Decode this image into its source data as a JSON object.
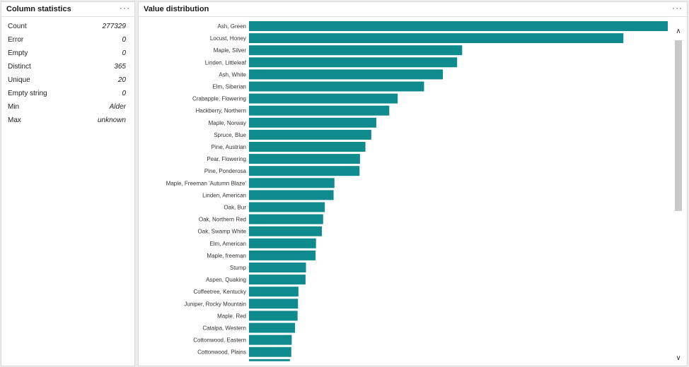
{
  "stats_panel": {
    "title": "Column statistics",
    "menu_label": "···",
    "rows": [
      {
        "label": "Count",
        "value": "277329"
      },
      {
        "label": "Error",
        "value": "0"
      },
      {
        "label": "Empty",
        "value": "0"
      },
      {
        "label": "Distinct",
        "value": "365"
      },
      {
        "label": "Unique",
        "value": "20"
      },
      {
        "label": "Empty string",
        "value": "0"
      },
      {
        "label": "Min",
        "value": "Alder"
      },
      {
        "label": "Max",
        "value": "unknown"
      }
    ]
  },
  "dist_panel": {
    "title": "Value distribution",
    "menu_label": "···"
  },
  "chart_data": {
    "type": "bar",
    "orientation": "horizontal",
    "title": "Value distribution",
    "categories": [
      "Ash, Green",
      "Locust, Honey",
      "Maple, Silver",
      "Linden, Littleleaf",
      "Ash, White",
      "Elm, Siberian",
      "Crabapple, Flowering",
      "Hackberry, Northern",
      "Maple, Norway",
      "Spruce, Blue",
      "Pine, Austrian",
      "Pear, Flowering",
      "Pine, Ponderosa",
      "Maple, Freeman 'Autumn Blaze'",
      "Linden, American",
      "Oak, Bur",
      "Oak, Northern Red",
      "Oak, Swamp White",
      "Elm, American",
      "Maple, freeman",
      "Stump",
      "Aspen, Quaking",
      "Coffeetree, Kentucky",
      "Juniper, Rocky Mountain",
      "Maple, Red",
      "Catalpa, Western",
      "Cottonwood, Eastern",
      "Cottonwood, Plains"
    ],
    "values": [
      100,
      89.4,
      50.9,
      49.7,
      46.3,
      41.8,
      35.5,
      33.5,
      30.4,
      29.2,
      27.8,
      26.5,
      26.4,
      20.4,
      20.2,
      18.1,
      17.7,
      17.4,
      16.0,
      15.9,
      13.6,
      13.5,
      11.8,
      11.7,
      11.6,
      11.0,
      10.2,
      10.1
    ],
    "xlim": [
      0,
      100
    ],
    "xlabel": "",
    "ylabel": ""
  }
}
